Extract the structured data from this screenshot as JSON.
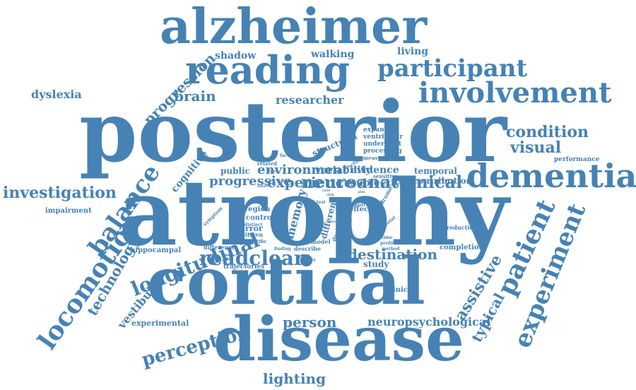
{
  "color": "#4682b4",
  "words": [
    {
      "id": "posterior",
      "text": "posterior"
    },
    {
      "id": "atrophy",
      "text": "atrophy"
    },
    {
      "id": "cortical",
      "text": "cortical"
    },
    {
      "id": "disease",
      "text": "disease"
    },
    {
      "id": "alzheimer",
      "text": "alzheimer"
    },
    {
      "id": "reading",
      "text": "reading"
    },
    {
      "id": "involvement",
      "text": "involvement"
    },
    {
      "id": "dementia",
      "text": "dementia"
    },
    {
      "id": "participant",
      "text": "participant"
    },
    {
      "id": "locomotion",
      "text": "locomotion"
    },
    {
      "id": "balance",
      "text": "balance"
    },
    {
      "id": "patient",
      "text": "patient"
    },
    {
      "id": "experiment",
      "text": "experiment"
    },
    {
      "id": "assistive",
      "text": "assistive"
    },
    {
      "id": "typical",
      "text": "typical"
    },
    {
      "id": "technology",
      "text": "technology"
    },
    {
      "id": "progression",
      "text": "progression"
    },
    {
      "id": "longitudinal",
      "text": "longitudinal"
    },
    {
      "id": "perception",
      "text": "perception"
    },
    {
      "id": "vestibular",
      "text": "vestibular"
    },
    {
      "id": "cognitive",
      "text": "cognitive"
    },
    {
      "id": "memory",
      "text": "memory"
    },
    {
      "id": "different",
      "text": "different"
    },
    {
      "id": "structural",
      "text": "structural"
    },
    {
      "id": "readclear",
      "text": "readclear"
    },
    {
      "id": "investigation",
      "text": "investigation"
    },
    {
      "id": "condition",
      "text": "condition"
    },
    {
      "id": "visual",
      "text": "visual"
    },
    {
      "id": "brain",
      "text": "brain"
    },
    {
      "id": "person",
      "text": "person"
    },
    {
      "id": "lighting",
      "text": "lighting"
    },
    {
      "id": "destination",
      "text": "destination"
    },
    {
      "id": "neuroanatomical",
      "text": "neuroanatomical"
    },
    {
      "id": "experience",
      "text": "experience"
    },
    {
      "id": "environment",
      "text": "environment"
    },
    {
      "id": "progressive",
      "text": "progressive"
    },
    {
      "id": "neuropsychological",
      "text": "neuropsychological"
    },
    {
      "id": "dyslexia",
      "text": "dyslexia"
    },
    {
      "id": "researcher",
      "text": "researcher"
    },
    {
      "id": "shadow",
      "text": "shadow"
    },
    {
      "id": "walking",
      "text": "walking"
    },
    {
      "id": "living",
      "text": "living"
    },
    {
      "id": "study",
      "text": "study"
    },
    {
      "id": "public",
      "text": "public"
    },
    {
      "id": "variability",
      "text": "variability"
    },
    {
      "id": "subjective",
      "text": "subjective"
    },
    {
      "id": "evidence",
      "text": "evidence"
    },
    {
      "id": "temporal",
      "text": "temporal"
    },
    {
      "id": "contribution",
      "text": "contribution"
    },
    {
      "id": "experimental",
      "text": "experimental"
    },
    {
      "id": "hippocampal",
      "text": "hippocampal"
    },
    {
      "id": "impairment",
      "text": "impairment"
    },
    {
      "id": "completion",
      "text": "completion"
    },
    {
      "id": "clinical",
      "text": "clinical"
    },
    {
      "id": "error",
      "text": "error"
    },
    {
      "id": "region",
      "text": "region"
    },
    {
      "id": "control",
      "text": "control"
    },
    {
      "id": "effect",
      "text": "effect"
    },
    {
      "id": "expansion",
      "text": "expansion"
    },
    {
      "id": "ventricular",
      "text": "ventricular"
    },
    {
      "id": "underwent",
      "text": "underwent"
    },
    {
      "id": "processing",
      "text": "processing"
    },
    {
      "id": "measure",
      "text": "measure"
    },
    {
      "id": "performance",
      "text": "performance"
    },
    {
      "id": "reduction",
      "text": "reduction"
    },
    {
      "id": "trajectories",
      "text": "trajectories"
    },
    {
      "id": "model",
      "text": "model"
    },
    {
      "id": "describe",
      "text": "describe"
    },
    {
      "id": "difference",
      "text": "difference"
    },
    {
      "id": "scientific",
      "text": "scientific"
    },
    {
      "id": "citizen",
      "text": "citizen"
    },
    {
      "id": "distinct",
      "text": "distinct"
    },
    {
      "id": "related",
      "text": "related"
    },
    {
      "id": "symptom",
      "text": "symptom"
    },
    {
      "id": "finding",
      "text": "finding"
    },
    {
      "id": "design",
      "text": "design"
    },
    {
      "id": "group",
      "text": "group"
    },
    {
      "id": "result",
      "text": "result"
    },
    {
      "id": "syndrome",
      "text": "syndrome"
    },
    {
      "id": "sensitive",
      "text": "sensitive"
    },
    {
      "id": "decline",
      "text": "decline"
    },
    {
      "id": "regional",
      "text": "regional"
    },
    {
      "id": "factor",
      "text": "factor"
    },
    {
      "id": "task",
      "text": "task"
    },
    {
      "id": "test",
      "text": "test"
    },
    {
      "id": "trial",
      "text": "trial"
    },
    {
      "id": "time",
      "text": "time"
    },
    {
      "id": "profile",
      "text": "profile"
    },
    {
      "id": "method",
      "text": "method"
    },
    {
      "id": "spatial",
      "text": "spatial"
    },
    {
      "id": "target",
      "text": "target"
    },
    {
      "id": "number",
      "text": "number"
    },
    {
      "id": "risk",
      "text": "risk"
    },
    {
      "id": "rate",
      "text": "rate"
    },
    {
      "id": "onset",
      "text": "onset"
    },
    {
      "id": "area",
      "text": "area"
    },
    {
      "id": "case",
      "text": "case"
    },
    {
      "id": "aim",
      "text": "aim"
    }
  ]
}
